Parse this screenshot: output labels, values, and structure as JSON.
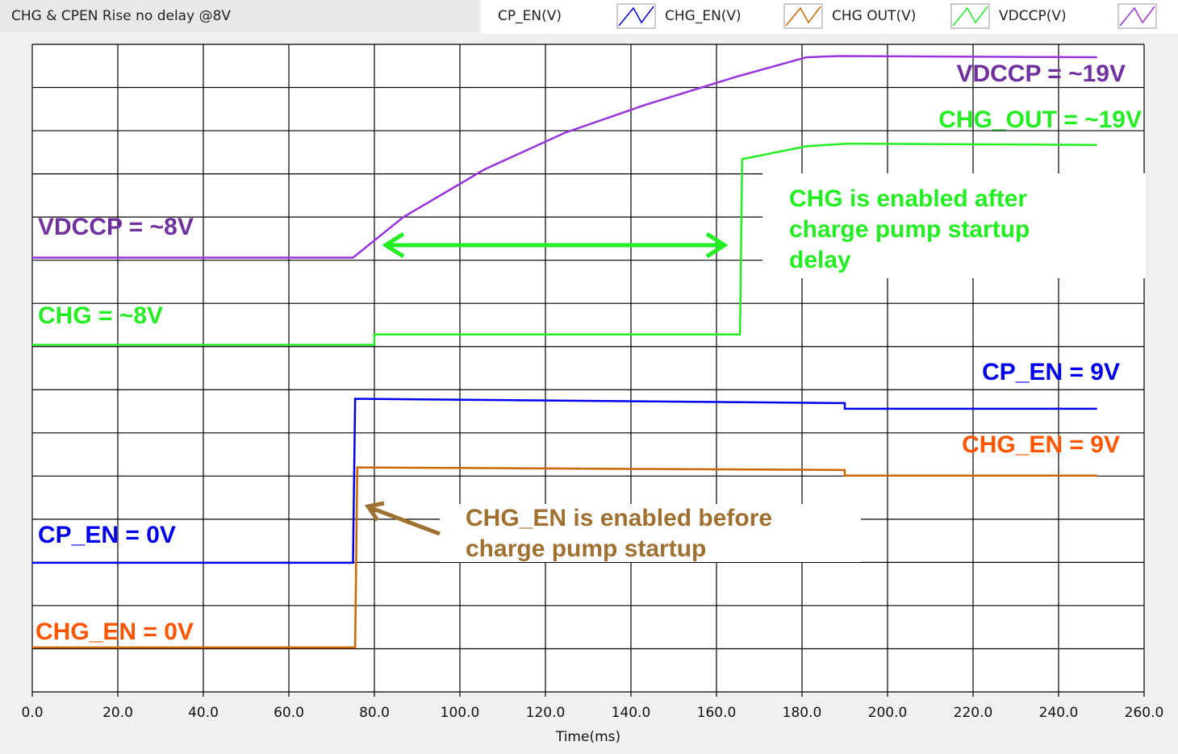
{
  "chart_data": {
    "type": "line",
    "title": "CHG & CPEN Rise no delay @8V",
    "x_label": "Time(ms)",
    "xlim": [
      0,
      260
    ],
    "xticks": [
      {
        "value": 0,
        "label": "0.0"
      },
      {
        "value": 20,
        "label": "20.0"
      },
      {
        "value": 40,
        "label": "40.0"
      },
      {
        "value": 60,
        "label": "60.0"
      },
      {
        "value": 80,
        "label": "80.0"
      },
      {
        "value": 100,
        "label": "100.0"
      },
      {
        "value": 120,
        "label": "120.0"
      },
      {
        "value": 140,
        "label": "140.0"
      },
      {
        "value": 160,
        "label": "160.0"
      },
      {
        "value": 180,
        "label": "180.0"
      },
      {
        "value": 200,
        "label": "200.0"
      },
      {
        "value": 220,
        "label": "220.0"
      },
      {
        "value": 240,
        "label": "240.0"
      },
      {
        "value": 260,
        "label": "260.0"
      }
    ],
    "ylim": [
      0,
      15
    ],
    "yticks": [
      0,
      1,
      2,
      3,
      4,
      5,
      6,
      7,
      8,
      9,
      10,
      11,
      12,
      13,
      14,
      15
    ],
    "grid": true,
    "series": [
      {
        "name": "CP_EN(V)",
        "color": "#0000ee",
        "x": [
          0,
          75,
          75.5,
          190,
          190,
          249
        ],
        "values": [
          2.99,
          2.99,
          6.79,
          6.69,
          6.56,
          6.56
        ]
      },
      {
        "name": "CHG_EN(V)",
        "color": "#cc6600",
        "x": [
          0,
          75.5,
          76,
          190,
          190,
          249
        ],
        "values": [
          1.03,
          1.03,
          5.2,
          5.14,
          5.01,
          5.01
        ]
      },
      {
        "name": "CHG OUT(V)",
        "color": "#22ee22",
        "x": [
          0,
          80,
          80,
          165.5,
          166,
          181,
          190.6,
          249
        ],
        "values": [
          8.04,
          8.04,
          8.28,
          8.28,
          12.34,
          12.64,
          12.7,
          12.67
        ]
      },
      {
        "name": "VDCCP(V)",
        "color": "#9933dd",
        "x": [
          0,
          75,
          86.8,
          105.7,
          124.5,
          143.4,
          165,
          181,
          188.7,
          249
        ],
        "values": [
          10.06,
          10.06,
          11.0,
          12.1,
          12.95,
          13.6,
          14.26,
          14.7,
          14.73,
          14.7
        ]
      }
    ],
    "annotations": [
      {
        "lines": [
          "VDCCP = ~19V"
        ],
        "color": "#7030a0"
      },
      {
        "lines": [
          "CHG_OUT = ~19V"
        ],
        "color": "#22ee22"
      },
      {
        "lines": [
          "VDCCP = ~8V"
        ],
        "color": "#7030a0"
      },
      {
        "lines": [
          "CHG = ~8V"
        ],
        "color": "#22ee22"
      },
      {
        "lines": [
          "CP_EN = 9V"
        ],
        "color": "#0000ee"
      },
      {
        "lines": [
          "CHG_EN = 9V"
        ],
        "color": "#ff5500"
      },
      {
        "lines": [
          "CP_EN = 0V"
        ],
        "color": "#0000ee"
      },
      {
        "lines": [
          "CHG_EN = 0V"
        ],
        "color": "#ff5500"
      },
      {
        "lines": [
          "CHG is enabled after",
          "charge pump startup",
          "delay"
        ],
        "color": "#22ee22"
      },
      {
        "lines": [
          "CHG_EN is enabled before",
          "charge pump startup"
        ],
        "color": "#a07030"
      }
    ]
  }
}
